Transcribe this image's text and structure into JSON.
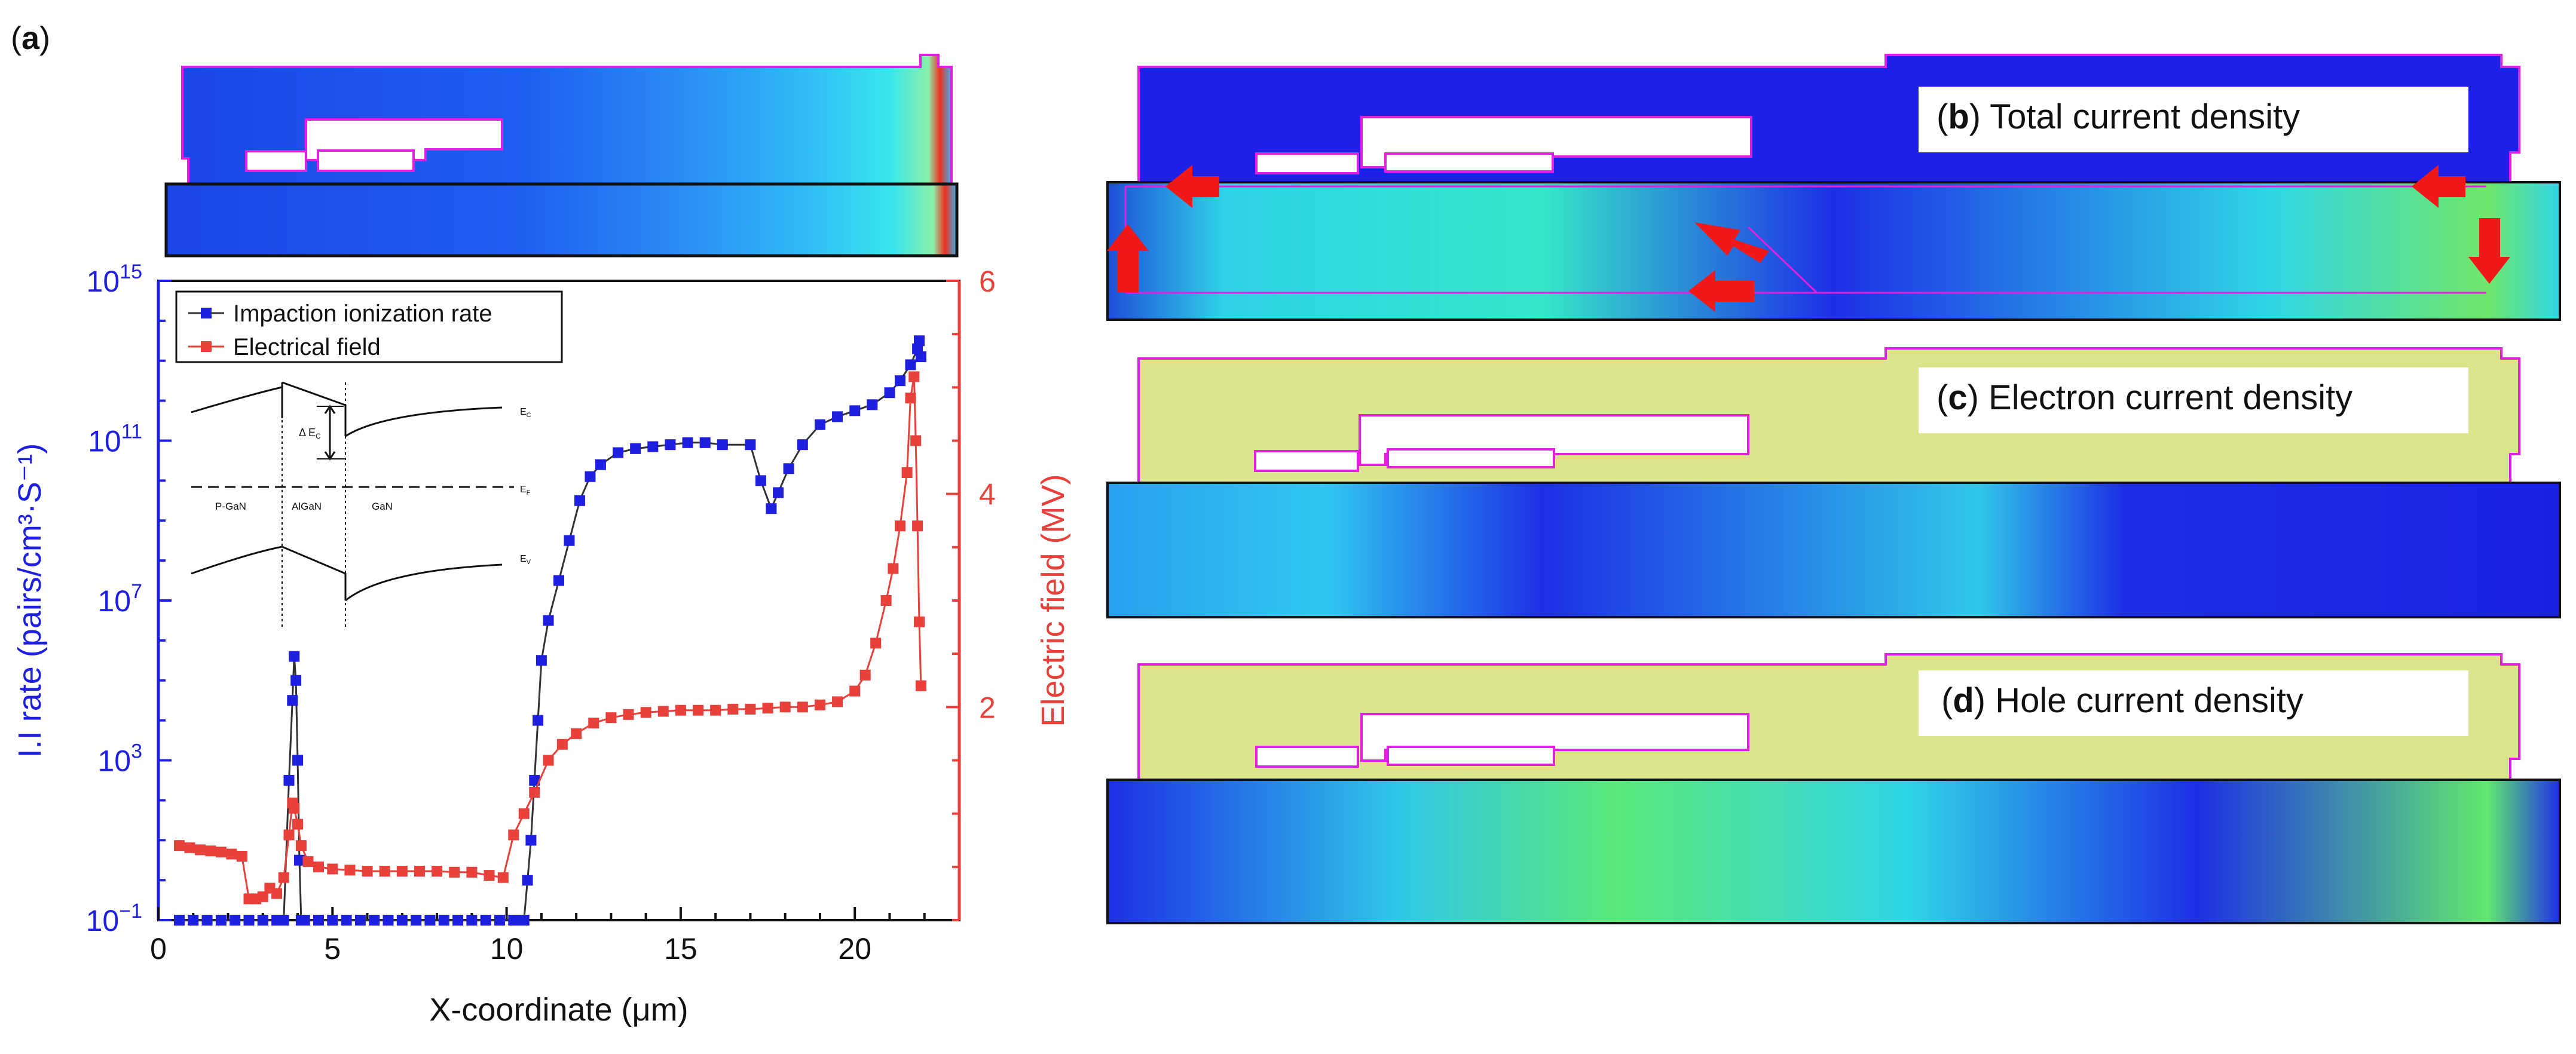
{
  "panel_a": {
    "label_open": "(",
    "label_letter": "a",
    "label_close": ")",
    "band_diagram": {
      "labels": [
        "E",
        "E",
        "E",
        "P-GaN",
        "AlGaN",
        "GaN"
      ],
      "subscripts": [
        "C",
        "F",
        "V"
      ],
      "delta_label": "Δ E",
      "delta_sub": "C"
    },
    "chart_data": {
      "type": "scatter",
      "x_label": "X-coordinate (μm)",
      "y_label_left": "I.I rate (pairs/cm³·S⁻¹)",
      "y_label_right": "Electric field (MV)",
      "x_ticks": [
        "0",
        "5",
        "10",
        "15",
        "20"
      ],
      "x_tick_values": [
        0,
        5,
        10,
        15,
        20
      ],
      "xlim": [
        0,
        23
      ],
      "y_left_ticks": [
        {
          "base": "10",
          "exp": "15",
          "value": 15
        },
        {
          "base": "10",
          "exp": "11",
          "value": 11
        },
        {
          "base": "10",
          "exp": "7",
          "value": 7
        },
        {
          "base": "10",
          "exp": "3",
          "value": 3
        },
        {
          "base": "10",
          "exp": "−1",
          "value": -1
        }
      ],
      "y_left_log": true,
      "ylim_left_log10": [
        -1,
        15
      ],
      "y_right_ticks": [
        "2",
        "4",
        "6"
      ],
      "y_right_tick_values": [
        2,
        4,
        6
      ],
      "ylim_right": [
        0,
        6
      ],
      "legend": {
        "position": "top-left"
      },
      "series": [
        {
          "name": "Impaction ionization rate",
          "color": "#1f1fe0",
          "axis": "left",
          "x": [
            0.6,
            1.0,
            1.4,
            1.8,
            2.2,
            2.6,
            3.0,
            3.4,
            3.6,
            3.75,
            3.85,
            3.9,
            3.95,
            4.0,
            4.05,
            4.1,
            4.2,
            4.6,
            5.0,
            5.4,
            5.8,
            6.2,
            6.6,
            7.0,
            7.4,
            7.8,
            8.2,
            8.6,
            9.0,
            9.4,
            9.8,
            10.2,
            10.5,
            10.6,
            10.7,
            10.8,
            10.9,
            11.0,
            11.2,
            11.5,
            11.8,
            12.1,
            12.4,
            12.7,
            13.2,
            13.7,
            14.2,
            14.7,
            15.2,
            15.7,
            16.2,
            17.0,
            17.3,
            17.6,
            17.8,
            18.1,
            18.5,
            19.0,
            19.5,
            20.0,
            20.5,
            21.0,
            21.3,
            21.6,
            21.8,
            21.85,
            21.9
          ],
          "log10_y": [
            -1,
            -1,
            -1,
            -1,
            -1,
            -1,
            -1,
            -1,
            -1,
            2.5,
            4.5,
            5.6,
            5.0,
            3.0,
            0.5,
            -1,
            -1,
            -1,
            -1,
            -1,
            -1,
            -1,
            -1,
            -1,
            -1,
            -1,
            -1,
            -1,
            -1,
            -1,
            -1,
            -1,
            -1,
            0,
            1,
            2.5,
            4.0,
            5.5,
            6.5,
            7.5,
            8.5,
            9.5,
            10.1,
            10.4,
            10.7,
            10.8,
            10.85,
            10.9,
            10.95,
            10.95,
            10.9,
            10.9,
            10.0,
            9.3,
            9.7,
            10.3,
            10.9,
            11.4,
            11.6,
            11.75,
            11.9,
            12.2,
            12.5,
            12.9,
            13.3,
            13.5,
            13.1
          ]
        },
        {
          "name": "Electrical field",
          "color": "#e8403a",
          "axis": "right",
          "x": [
            0.6,
            0.9,
            1.2,
            1.5,
            1.8,
            2.1,
            2.4,
            2.6,
            2.8,
            3.0,
            3.2,
            3.4,
            3.6,
            3.75,
            3.85,
            3.9,
            4.0,
            4.1,
            4.3,
            4.6,
            5.0,
            5.5,
            6.0,
            6.5,
            7.0,
            7.5,
            8.0,
            8.5,
            9.0,
            9.5,
            9.9,
            10.2,
            10.5,
            10.8,
            11.2,
            11.6,
            12.0,
            12.5,
            13.0,
            13.5,
            14.0,
            14.5,
            15.0,
            15.5,
            16.0,
            16.5,
            17.0,
            17.5,
            18.0,
            18.5,
            19.0,
            19.5,
            20.0,
            20.3,
            20.6,
            20.9,
            21.1,
            21.3,
            21.5,
            21.6,
            21.7,
            21.75,
            21.8,
            21.85,
            21.9
          ],
          "y": [
            0.7,
            0.68,
            0.66,
            0.65,
            0.64,
            0.62,
            0.6,
            0.2,
            0.2,
            0.22,
            0.3,
            0.25,
            0.4,
            0.8,
            1.1,
            1.05,
            0.9,
            0.7,
            0.55,
            0.5,
            0.48,
            0.47,
            0.46,
            0.46,
            0.46,
            0.46,
            0.46,
            0.45,
            0.45,
            0.42,
            0.4,
            0.8,
            1.0,
            1.2,
            1.5,
            1.65,
            1.75,
            1.85,
            1.9,
            1.93,
            1.95,
            1.96,
            1.97,
            1.97,
            1.97,
            1.98,
            1.98,
            1.99,
            2.0,
            2.0,
            2.02,
            2.05,
            2.15,
            2.3,
            2.6,
            3.0,
            3.3,
            3.7,
            4.2,
            4.9,
            5.1,
            4.5,
            3.7,
            2.8,
            2.2
          ]
        }
      ]
    }
  },
  "panels": {
    "b": {
      "open": "(",
      "letter": "b",
      "rest": ") Total current density"
    },
    "c": {
      "open": "(",
      "letter": "c",
      "rest": ") Electron current density"
    },
    "d": {
      "open": "(",
      "letter": "d",
      "rest": ") Hole current density"
    }
  },
  "colors": {
    "left_axis": "#1f1fe0",
    "right_axis": "#e8403a",
    "device_outline": "#e020e0",
    "arrow": "#f01818",
    "oxide_fill": "#dce58c"
  }
}
